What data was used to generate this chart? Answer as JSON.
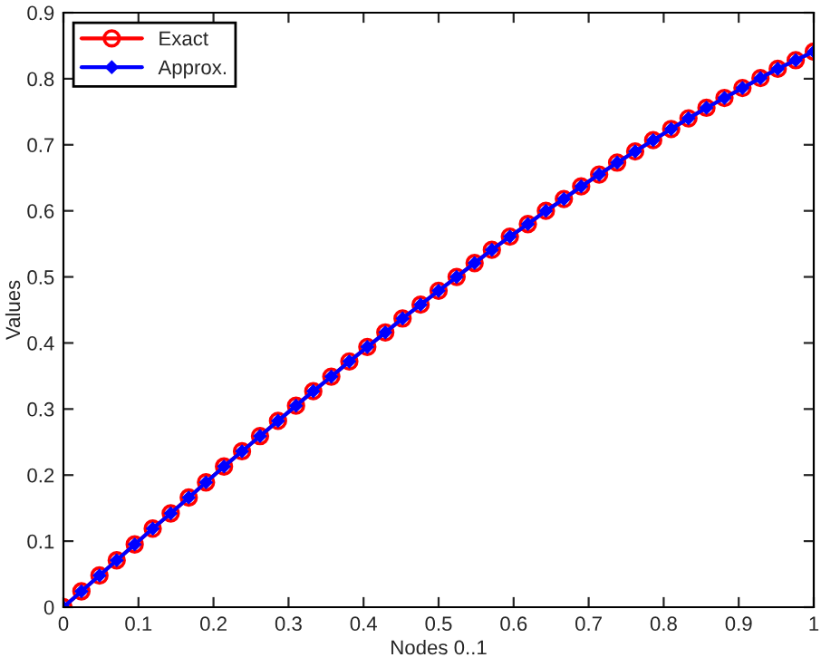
{
  "chart_data": {
    "type": "line",
    "xlabel": "Nodes 0..1",
    "ylabel": "Values",
    "x": [
      0,
      0.024,
      0.048,
      0.071,
      0.095,
      0.119,
      0.143,
      0.167,
      0.19,
      0.214,
      0.238,
      0.262,
      0.286,
      0.31,
      0.333,
      0.357,
      0.381,
      0.405,
      0.429,
      0.452,
      0.476,
      0.5,
      0.524,
      0.548,
      0.571,
      0.595,
      0.619,
      0.643,
      0.667,
      0.69,
      0.714,
      0.738,
      0.762,
      0.786,
      0.81,
      0.833,
      0.857,
      0.881,
      0.905,
      0.929,
      0.952,
      0.976,
      1
    ],
    "series": [
      {
        "name": "Exact",
        "color": "#ff0000",
        "marker": "circle",
        "values": [
          0,
          0.024,
          0.048,
          0.071,
          0.095,
          0.119,
          0.142,
          0.166,
          0.189,
          0.213,
          0.236,
          0.259,
          0.282,
          0.305,
          0.327,
          0.349,
          0.372,
          0.394,
          0.416,
          0.437,
          0.458,
          0.479,
          0.5,
          0.521,
          0.541,
          0.561,
          0.58,
          0.6,
          0.618,
          0.637,
          0.655,
          0.673,
          0.69,
          0.707,
          0.724,
          0.74,
          0.756,
          0.771,
          0.786,
          0.801,
          0.815,
          0.828,
          0.841
        ]
      },
      {
        "name": "Approx.",
        "color": "#0000ff",
        "marker": "diamond",
        "values": [
          0,
          0.024,
          0.048,
          0.071,
          0.095,
          0.119,
          0.142,
          0.166,
          0.189,
          0.213,
          0.236,
          0.259,
          0.282,
          0.305,
          0.327,
          0.349,
          0.372,
          0.394,
          0.416,
          0.437,
          0.458,
          0.479,
          0.5,
          0.521,
          0.541,
          0.561,
          0.58,
          0.6,
          0.618,
          0.637,
          0.655,
          0.673,
          0.69,
          0.707,
          0.724,
          0.74,
          0.756,
          0.771,
          0.786,
          0.801,
          0.815,
          0.828,
          0.841
        ]
      }
    ],
    "xlim": [
      0,
      1
    ],
    "xticks": [
      0,
      0.1,
      0.2,
      0.3,
      0.4,
      0.5,
      0.6,
      0.7,
      0.8,
      0.9,
      1
    ],
    "ylim": [
      0,
      0.9
    ],
    "yticks": [
      0,
      0.1,
      0.2,
      0.3,
      0.4,
      0.5,
      0.6,
      0.7,
      0.8,
      0.9
    ],
    "legend": "top left",
    "grid": false
  }
}
